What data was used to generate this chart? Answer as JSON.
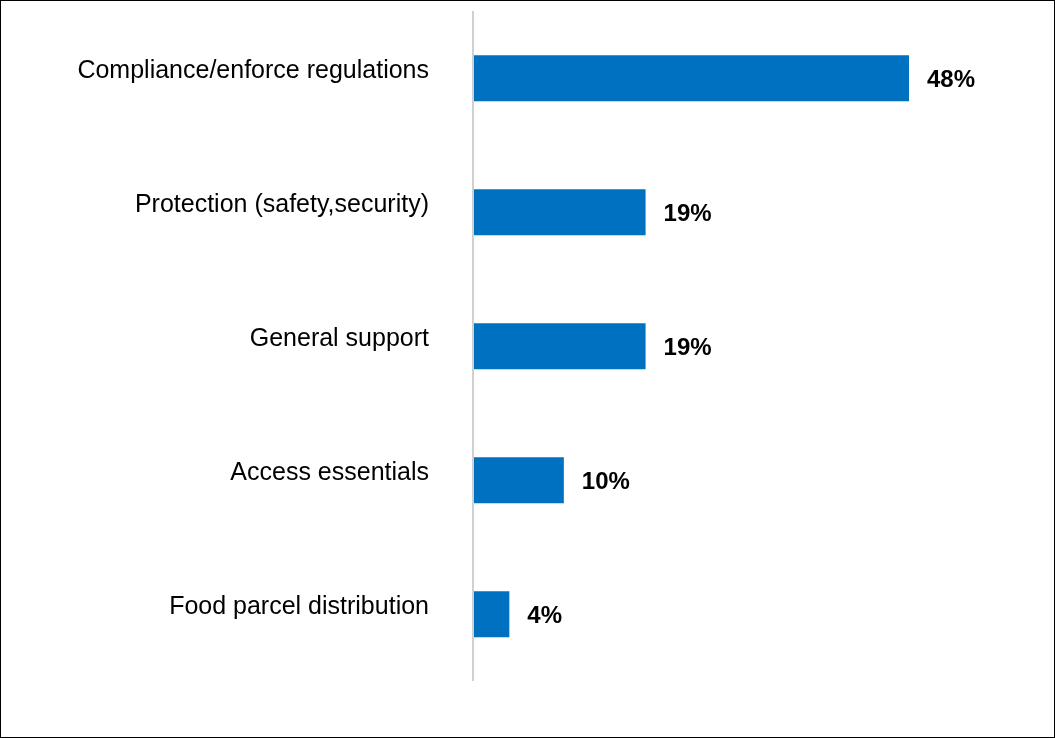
{
  "chart_data": {
    "type": "bar",
    "orientation": "horizontal",
    "categories": [
      "Compliance/enforce regulations",
      "Protection (safety,security)",
      "General support",
      "Access essentials",
      "Food parcel distribution"
    ],
    "values": [
      48,
      19,
      19,
      10,
      4
    ],
    "color": "#0070c0",
    "value_labels": [
      "48%",
      "19%",
      "19%",
      "10%",
      "4%"
    ]
  }
}
